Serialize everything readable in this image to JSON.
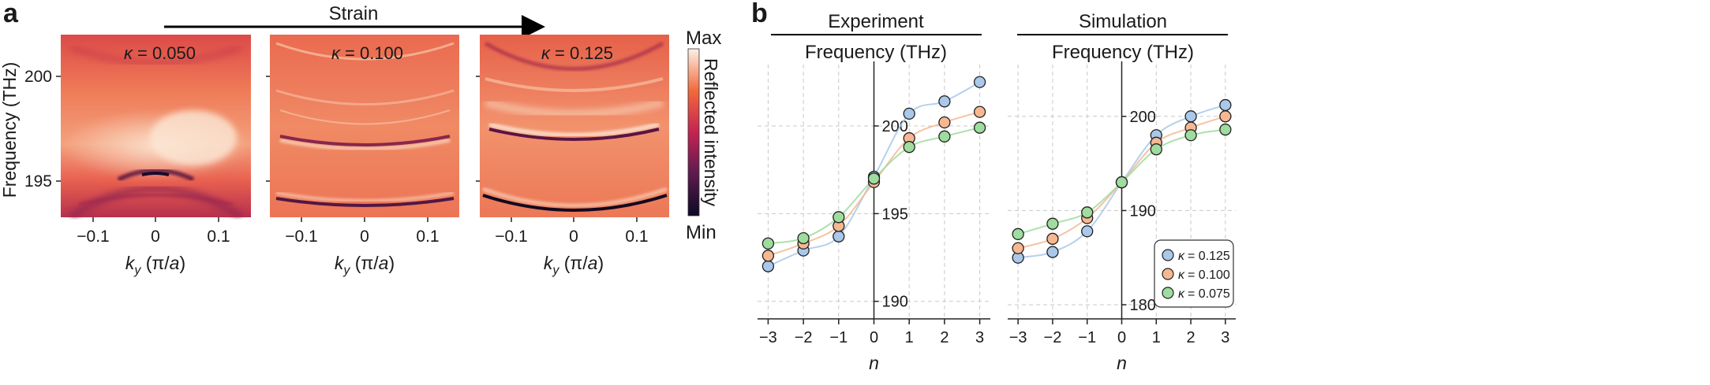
{
  "panel_a": {
    "letter": "a",
    "strain_label": "Strain",
    "ylabel": "Frequency (THz)",
    "xlabel_k": "k",
    "xlabel_sub": "y",
    "xlabel_unit_open": " (π/",
    "xlabel_unit_a": "a",
    "xlabel_unit_close": ")",
    "x_ticks": [
      "−0.1",
      "0",
      "0.1"
    ],
    "y_ticks": [
      "200",
      "195"
    ],
    "colorbar": {
      "max": "Max",
      "min": "Min",
      "label": "Reflected intensity"
    },
    "colors": {
      "min": "#0c0924",
      "mid": "#c42352",
      "high": "#f26a3b",
      "max": "#fcf0e6"
    },
    "maps": [
      {
        "kappa_symbol": "κ",
        "kappa_value": "= 0.050"
      },
      {
        "kappa_symbol": "κ",
        "kappa_value": "= 0.100"
      },
      {
        "kappa_symbol": "κ",
        "kappa_value": "= 0.125"
      }
    ]
  },
  "panel_b": {
    "letter": "b",
    "colors": {
      "k0125": "#a9c8ea",
      "k0100": "#f5b892",
      "k0075": "#9fdc9f"
    },
    "legend": [
      {
        "symbol": "κ",
        "value": "= 0.125"
      },
      {
        "symbol": "κ",
        "value": "= 0.100"
      },
      {
        "symbol": "κ",
        "value": "= 0.075"
      }
    ],
    "xlabel": "n"
  },
  "chart_data": [
    {
      "type": "scatter",
      "title": "Experiment",
      "subtitle": "Frequency (THz)",
      "xlabel": "n",
      "x": [
        -3,
        -2,
        -1,
        0,
        1,
        2,
        3
      ],
      "x_tick_labels": [
        "−3",
        "−2",
        "−1",
        "0",
        "1",
        "2",
        "3"
      ],
      "y_tick_labels": [
        "200",
        "195",
        "190"
      ],
      "ylim": [
        189,
        203.5
      ],
      "grid": true,
      "series": [
        {
          "name": "κ = 0.125",
          "values": [
            192.0,
            192.9,
            193.7,
            197.1,
            200.7,
            201.4,
            202.5
          ]
        },
        {
          "name": "κ = 0.100",
          "values": [
            192.6,
            193.3,
            194.3,
            196.8,
            199.3,
            200.2,
            200.8
          ]
        },
        {
          "name": "κ = 0.075",
          "values": [
            193.3,
            193.6,
            194.8,
            197.0,
            198.8,
            199.4,
            199.9
          ]
        }
      ]
    },
    {
      "type": "scatter",
      "title": "Simulation",
      "subtitle": "Frequency (THz)",
      "xlabel": "n",
      "x": [
        -3,
        -2,
        -1,
        0,
        1,
        2,
        3
      ],
      "x_tick_labels": [
        "−3",
        "−2",
        "−1",
        "0",
        "1",
        "2",
        "3"
      ],
      "y_tick_labels": [
        "200",
        "190",
        "180"
      ],
      "ylim": [
        178.5,
        205.5
      ],
      "grid": true,
      "legend": "bottom-right",
      "series": [
        {
          "name": "κ = 0.125",
          "values": [
            185.0,
            185.6,
            187.8,
            193.0,
            198.0,
            200.0,
            201.2
          ]
        },
        {
          "name": "κ = 0.100",
          "values": [
            186.0,
            187.0,
            189.2,
            193.0,
            197.2,
            198.8,
            200.0
          ]
        },
        {
          "name": "κ = 0.075",
          "values": [
            187.5,
            188.6,
            189.8,
            193.0,
            196.5,
            198.0,
            198.6
          ]
        }
      ]
    }
  ]
}
